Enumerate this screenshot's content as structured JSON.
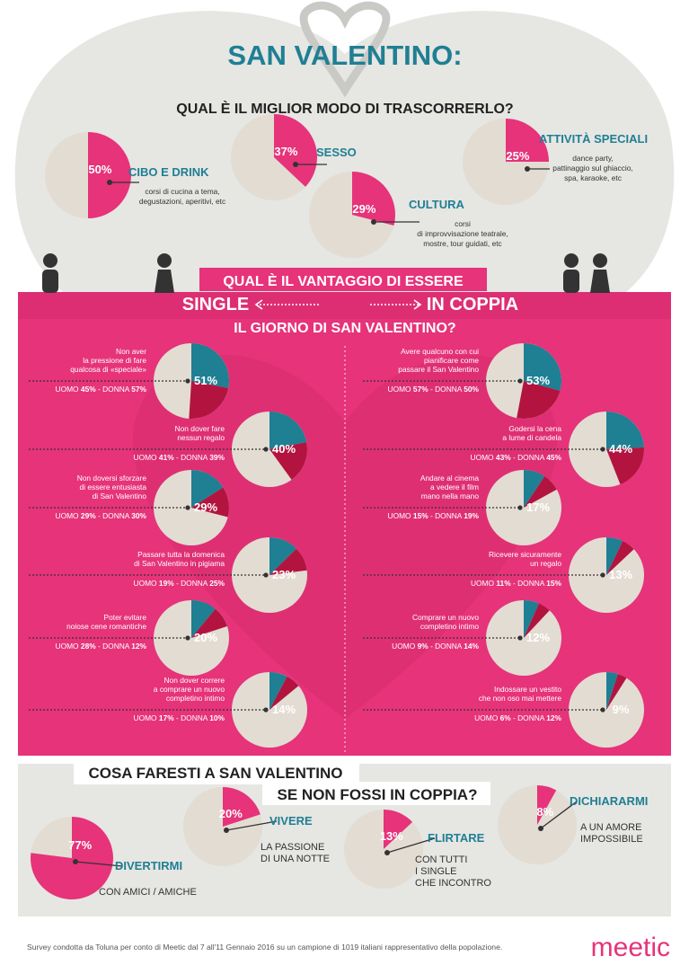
{
  "header": {
    "title": "SAN VALENTINO:",
    "subtitle": "QUAL È IL MIGLIOR MODO DI TRASCORRERLO?"
  },
  "colors": {
    "pink": "#e6337a",
    "teal": "#1f7f93",
    "crimson": "#b3143f",
    "beige": "#e3dcd2",
    "bg_gray": "#e6e6e3",
    "text_dark": "#222222"
  },
  "chart_data": [
    {
      "type": "pie",
      "id": "best-way",
      "title": "QUAL È IL MIGLIOR MODO DI TRASCORRERLO?",
      "slices": [
        {
          "label": "CIBO E DRINK",
          "value": 50,
          "pct_label": "50%",
          "desc": [
            "corsi di cucina a tema,",
            "degustazioni, aperitivi, etc"
          ]
        },
        {
          "label": "SESSO",
          "value": 37,
          "pct_label": "37%",
          "desc": []
        },
        {
          "label": "CULTURA",
          "value": 29,
          "pct_label": "29%",
          "desc": [
            "corsi",
            "di improvvisazione teatrale,",
            "mostre, tour guidati, etc"
          ]
        },
        {
          "label": "ATTIVITÀ SPECIALI",
          "value": 25,
          "pct_label": "25%",
          "desc": [
            "dance party,",
            "pattinaggio sul ghiaccio,",
            "spa, karaoke, etc"
          ]
        }
      ]
    },
    {
      "type": "pie",
      "id": "single",
      "title": "SINGLE",
      "items": [
        {
          "lines": [
            "Non aver",
            "la pressione di fare",
            "qualcosa di «speciale»"
          ],
          "value": 51,
          "pct_label": "51%",
          "uomo": 45,
          "donna": 57,
          "uomo_label": "UOMO",
          "uomo_val": "45%",
          "donna_label": "DONNA",
          "donna_val": "57%"
        },
        {
          "lines": [
            "Non dover fare",
            "nessun regalo"
          ],
          "value": 40,
          "pct_label": "40%",
          "uomo": 41,
          "donna": 39,
          "uomo_label": "UOMO",
          "uomo_val": "41%",
          "donna_label": "DONNA",
          "donna_val": "39%"
        },
        {
          "lines": [
            "Non doversi sforzare",
            "di essere entusiasta",
            "di San Valentino"
          ],
          "value": 29,
          "pct_label": "29%",
          "uomo": 29,
          "donna": 30,
          "uomo_label": "UOMO",
          "uomo_val": "29%",
          "donna_label": "DONNA",
          "donna_val": "30%"
        },
        {
          "lines": [
            "Passare tutta la domenica",
            "di San Valentino in pigiama"
          ],
          "value": 23,
          "pct_label": "23%",
          "uomo": 19,
          "donna": 25,
          "uomo_label": "UOMO",
          "uomo_val": "19%",
          "donna_label": "DONNA",
          "donna_val": "25%"
        },
        {
          "lines": [
            "Poter evitare",
            "noiose cene romantiche"
          ],
          "value": 20,
          "pct_label": "20%",
          "uomo": 28,
          "donna": 12,
          "uomo_label": "UOMO",
          "uomo_val": "28%",
          "donna_label": "DONNA",
          "donna_val": "12%"
        },
        {
          "lines": [
            "Non dover correre",
            "a comprare un nuovo",
            "completino intimo"
          ],
          "value": 14,
          "pct_label": "14%",
          "uomo": 17,
          "donna": 10,
          "uomo_label": "UOMO",
          "uomo_val": "17%",
          "donna_label": "DONNA",
          "donna_val": "10%"
        }
      ]
    },
    {
      "type": "pie",
      "id": "coppia",
      "title": "IN COPPIA",
      "items": [
        {
          "lines": [
            "Avere qualcuno con cui",
            "pianificare come",
            "passare il San Valentino"
          ],
          "value": 53,
          "pct_label": "53%",
          "uomo": 57,
          "donna": 50,
          "uomo_label": "UOMO",
          "uomo_val": "57%",
          "donna_label": "DONNA",
          "donna_val": "50%"
        },
        {
          "lines": [
            "Godersi la cena",
            "a lume di candela"
          ],
          "value": 44,
          "pct_label": "44%",
          "uomo": 43,
          "donna": 45,
          "uomo_label": "UOMO",
          "uomo_val": "43%",
          "donna_label": "DONNA",
          "donna_val": "45%"
        },
        {
          "lines": [
            "Andare al cinema",
            "a vedere il film",
            "mano nella mano"
          ],
          "value": 17,
          "pct_label": "17%",
          "uomo": 15,
          "donna": 19,
          "uomo_label": "UOMO",
          "uomo_val": "15%",
          "donna_label": "DONNA",
          "donna_val": "19%"
        },
        {
          "lines": [
            "Ricevere sicuramente",
            "un regalo"
          ],
          "value": 13,
          "pct_label": "13%",
          "uomo": 11,
          "donna": 15,
          "uomo_label": "UOMO",
          "uomo_val": "11%",
          "donna_label": "DONNA",
          "donna_val": "15%"
        },
        {
          "lines": [
            "Comprare un nuovo",
            "completino intimo"
          ],
          "value": 12,
          "pct_label": "12%",
          "uomo": 9,
          "donna": 14,
          "uomo_label": "UOMO",
          "uomo_val": "9%",
          "donna_label": "DONNA",
          "donna_val": "14%"
        },
        {
          "lines": [
            "Indossare un vestito",
            "che non oso mai mettere"
          ],
          "value": 9,
          "pct_label": "9%",
          "uomo": 6,
          "donna": 12,
          "uomo_label": "UOMO",
          "uomo_val": "6%",
          "donna_label": "DONNA",
          "donna_val": "12%"
        }
      ]
    },
    {
      "type": "pie",
      "id": "non-coppia",
      "title": "COSA FARESTI A SAN VALENTINO SE NON FOSSI IN COPPIA?",
      "slices": [
        {
          "label": "DIVERTIRMI",
          "value": 77,
          "pct_label": "77%",
          "desc": [
            "CON AMICI / AMICHE"
          ]
        },
        {
          "label": "VIVERE",
          "value": 20,
          "pct_label": "20%",
          "desc": [
            "LA PASSIONE",
            "DI UNA NOTTE"
          ]
        },
        {
          "label": "FLIRTARE",
          "value": 13,
          "pct_label": "13%",
          "desc": [
            "CON TUTTI",
            "I SINGLE",
            "CHE INCONTRO"
          ]
        },
        {
          "label": "DICHIARARMI",
          "value": 8,
          "pct_label": "8%",
          "desc": [
            "A UN AMORE",
            "IMPOSSIBILE"
          ]
        }
      ]
    }
  ],
  "advantage": {
    "title1": "QUAL È IL VANTAGGIO DI ESSERE",
    "single": "SINGLE",
    "coppia": "IN COPPIA",
    "title2": "IL GIORNO DI SAN VALENTINO?"
  },
  "bottom": {
    "title1": "COSA FARESTI A SAN VALENTINO",
    "title2": "SE NON FOSSI IN COPPIA?"
  },
  "footer": {
    "survey": "Survey condotta da Toluna per conto di Meetic dal 7 all'11 Gennaio 2016 su un campione di 1019 italiani rappresentativo della popolazione.",
    "logo": "meetic"
  }
}
